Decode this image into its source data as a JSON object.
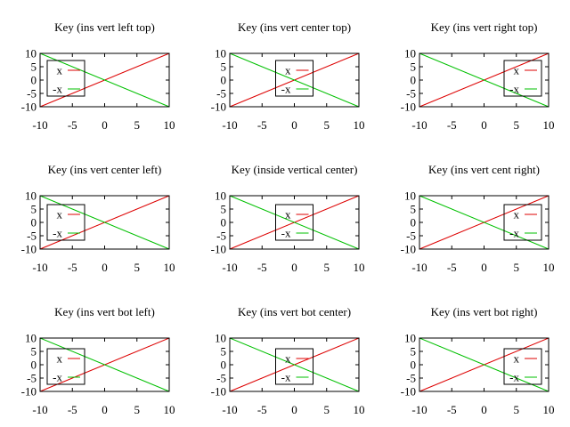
{
  "figure": {
    "layout": "3x3 grid of small line plots"
  },
  "chart_data": [
    {
      "type": "line",
      "title": "Key (ins vert left top)",
      "key_position": "inside, vertical, left, top",
      "x_ticks": [
        "-10",
        "-5",
        "0",
        "5",
        "10"
      ],
      "y_ticks": [
        "10",
        "5",
        "0",
        "-5",
        "-10"
      ],
      "xlim": [
        -10,
        10
      ],
      "ylim": [
        -10,
        10
      ],
      "series": [
        {
          "name": "x",
          "color": "#dd0000",
          "x": [
            -10,
            10
          ],
          "y": [
            -10,
            10
          ]
        },
        {
          "name": "-x",
          "color": "#00c000",
          "x": [
            -10,
            10
          ],
          "y": [
            10,
            -10
          ]
        }
      ]
    },
    {
      "type": "line",
      "title": "Key (ins vert center top)",
      "key_position": "inside, vertical, center, top",
      "x_ticks": [
        "-10",
        "-5",
        "0",
        "5",
        "10"
      ],
      "y_ticks": [
        "10",
        "5",
        "0",
        "-5",
        "-10"
      ],
      "xlim": [
        -10,
        10
      ],
      "ylim": [
        -10,
        10
      ],
      "series": [
        {
          "name": "x",
          "color": "#dd0000",
          "x": [
            -10,
            10
          ],
          "y": [
            -10,
            10
          ]
        },
        {
          "name": "-x",
          "color": "#00c000",
          "x": [
            -10,
            10
          ],
          "y": [
            10,
            -10
          ]
        }
      ]
    },
    {
      "type": "line",
      "title": "Key (ins vert right top)",
      "key_position": "inside, vertical, right, top",
      "x_ticks": [
        "-10",
        "-5",
        "0",
        "5",
        "10"
      ],
      "y_ticks": [
        "10",
        "5",
        "0",
        "-5",
        "-10"
      ],
      "xlim": [
        -10,
        10
      ],
      "ylim": [
        -10,
        10
      ],
      "series": [
        {
          "name": "x",
          "color": "#dd0000",
          "x": [
            -10,
            10
          ],
          "y": [
            -10,
            10
          ]
        },
        {
          "name": "-x",
          "color": "#00c000",
          "x": [
            -10,
            10
          ],
          "y": [
            10,
            -10
          ]
        }
      ]
    },
    {
      "type": "line",
      "title": "Key (ins vert center left)",
      "key_position": "inside, vertical, left, center",
      "x_ticks": [
        "-10",
        "-5",
        "0",
        "5",
        "10"
      ],
      "y_ticks": [
        "10",
        "5",
        "0",
        "-5",
        "-10"
      ],
      "xlim": [
        -10,
        10
      ],
      "ylim": [
        -10,
        10
      ],
      "series": [
        {
          "name": "x",
          "color": "#dd0000",
          "x": [
            -10,
            10
          ],
          "y": [
            -10,
            10
          ]
        },
        {
          "name": "-x",
          "color": "#00c000",
          "x": [
            -10,
            10
          ],
          "y": [
            10,
            -10
          ]
        }
      ]
    },
    {
      "type": "line",
      "title": "Key (inside vertical center)",
      "key_position": "inside, vertical, center, center",
      "x_ticks": [
        "-10",
        "-5",
        "0",
        "5",
        "10"
      ],
      "y_ticks": [
        "10",
        "5",
        "0",
        "-5",
        "-10"
      ],
      "xlim": [
        -10,
        10
      ],
      "ylim": [
        -10,
        10
      ],
      "series": [
        {
          "name": "x",
          "color": "#dd0000",
          "x": [
            -10,
            10
          ],
          "y": [
            -10,
            10
          ]
        },
        {
          "name": "-x",
          "color": "#00c000",
          "x": [
            -10,
            10
          ],
          "y": [
            10,
            -10
          ]
        }
      ]
    },
    {
      "type": "line",
      "title": "Key (ins vert cent right)",
      "key_position": "inside, vertical, right, center",
      "x_ticks": [
        "-10",
        "-5",
        "0",
        "5",
        "10"
      ],
      "y_ticks": [
        "10",
        "5",
        "0",
        "-5",
        "-10"
      ],
      "xlim": [
        -10,
        10
      ],
      "ylim": [
        -10,
        10
      ],
      "series": [
        {
          "name": "x",
          "color": "#dd0000",
          "x": [
            -10,
            10
          ],
          "y": [
            -10,
            10
          ]
        },
        {
          "name": "-x",
          "color": "#00c000",
          "x": [
            -10,
            10
          ],
          "y": [
            10,
            -10
          ]
        }
      ]
    },
    {
      "type": "line",
      "title": "Key (ins vert bot left)",
      "key_position": "inside, vertical, left, bottom",
      "x_ticks": [
        "-10",
        "-5",
        "0",
        "5",
        "10"
      ],
      "y_ticks": [
        "10",
        "5",
        "0",
        "-5",
        "-10"
      ],
      "xlim": [
        -10,
        10
      ],
      "ylim": [
        -10,
        10
      ],
      "series": [
        {
          "name": "x",
          "color": "#dd0000",
          "x": [
            -10,
            10
          ],
          "y": [
            -10,
            10
          ]
        },
        {
          "name": "-x",
          "color": "#00c000",
          "x": [
            -10,
            10
          ],
          "y": [
            10,
            -10
          ]
        }
      ]
    },
    {
      "type": "line",
      "title": "Key (ins vert bot center)",
      "key_position": "inside, vertical, center, bottom",
      "x_ticks": [
        "-10",
        "-5",
        "0",
        "5",
        "10"
      ],
      "y_ticks": [
        "10",
        "5",
        "0",
        "-5",
        "-10"
      ],
      "xlim": [
        -10,
        10
      ],
      "ylim": [
        -10,
        10
      ],
      "series": [
        {
          "name": "x",
          "color": "#dd0000",
          "x": [
            -10,
            10
          ],
          "y": [
            -10,
            10
          ]
        },
        {
          "name": "-x",
          "color": "#00c000",
          "x": [
            -10,
            10
          ],
          "y": [
            10,
            -10
          ]
        }
      ]
    },
    {
      "type": "line",
      "title": "Key (ins vert bot right)",
      "key_position": "inside, vertical, right, bottom",
      "x_ticks": [
        "-10",
        "-5",
        "0",
        "5",
        "10"
      ],
      "y_ticks": [
        "10",
        "5",
        "0",
        "-5",
        "-10"
      ],
      "xlim": [
        -10,
        10
      ],
      "ylim": [
        -10,
        10
      ],
      "series": [
        {
          "name": "x",
          "color": "#dd0000",
          "x": [
            -10,
            10
          ],
          "y": [
            -10,
            10
          ]
        },
        {
          "name": "-x",
          "color": "#00c000",
          "x": [
            -10,
            10
          ],
          "y": [
            10,
            -10
          ]
        }
      ]
    }
  ]
}
